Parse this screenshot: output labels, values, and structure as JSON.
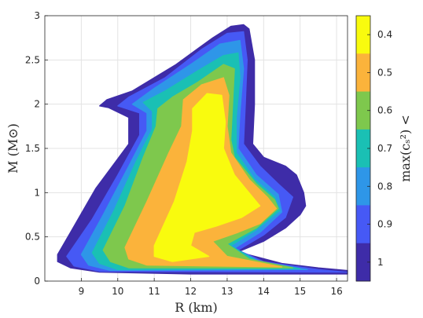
{
  "chart_data": {
    "type": "area",
    "title": "",
    "xlabel": "R (km)",
    "ylabel": "M (M⊙)",
    "xlim": [
      8.0,
      16.3
    ],
    "ylim": [
      0,
      3.0
    ],
    "xticks": [
      "9",
      "10",
      "11",
      "12",
      "13",
      "14",
      "15",
      "16"
    ],
    "xtick_values": [
      9,
      10,
      11,
      12,
      13,
      14,
      15,
      16
    ],
    "yticks": [
      "0",
      "0.5",
      "1",
      "1.5",
      "2",
      "2.5",
      "3"
    ],
    "ytick_values": [
      0,
      0.5,
      1,
      1.5,
      2,
      2.5,
      3
    ],
    "grid": true,
    "colorbar": {
      "label": "max(cₛ²) <",
      "ticks": [
        "0.4",
        "0.5",
        "0.6",
        "0.7",
        "0.8",
        "0.9",
        "1"
      ],
      "colors": [
        "#f9fb0e",
        "#fbb33b",
        "#7ec84d",
        "#1ac0b4",
        "#2e96e8",
        "#4659f5",
        "#3e2ca8"
      ]
    },
    "regions": [
      {
        "bound": "1",
        "color": "#3e2ca8",
        "points": [
          [
            8.35,
            0.3
          ],
          [
            8.7,
            0.55
          ],
          [
            9.4,
            1.05
          ],
          [
            10.3,
            1.55
          ],
          [
            10.3,
            1.85
          ],
          [
            9.75,
            1.96
          ],
          [
            9.5,
            1.98
          ],
          [
            9.7,
            2.05
          ],
          [
            10.4,
            2.15
          ],
          [
            11.6,
            2.45
          ],
          [
            12.6,
            2.75
          ],
          [
            13.1,
            2.88
          ],
          [
            13.45,
            2.9
          ],
          [
            13.6,
            2.85
          ],
          [
            13.75,
            2.5
          ],
          [
            13.75,
            2.0
          ],
          [
            13.7,
            1.55
          ],
          [
            14.0,
            1.4
          ],
          [
            14.6,
            1.3
          ],
          [
            14.9,
            1.2
          ],
          [
            15.1,
            1.0
          ],
          [
            15.15,
            0.85
          ],
          [
            15.0,
            0.75
          ],
          [
            14.6,
            0.6
          ],
          [
            14.0,
            0.45
          ],
          [
            13.3,
            0.33
          ],
          [
            14.5,
            0.2
          ],
          [
            15.5,
            0.15
          ],
          [
            16.3,
            0.12
          ],
          [
            16.3,
            0.08
          ],
          [
            12.0,
            0.08
          ],
          [
            9.5,
            0.1
          ],
          [
            8.7,
            0.15
          ],
          [
            8.35,
            0.22
          ]
        ]
      },
      {
        "bound": "0.9",
        "color": "#4659f5",
        "points": [
          [
            8.6,
            0.28
          ],
          [
            9.3,
            0.7
          ],
          [
            10.0,
            1.2
          ],
          [
            10.6,
            1.65
          ],
          [
            10.6,
            1.9
          ],
          [
            10.0,
            1.98
          ],
          [
            10.3,
            2.08
          ],
          [
            11.3,
            2.3
          ],
          [
            12.3,
            2.62
          ],
          [
            13.0,
            2.8
          ],
          [
            13.45,
            2.82
          ],
          [
            13.55,
            2.5
          ],
          [
            13.5,
            2.0
          ],
          [
            13.45,
            1.55
          ],
          [
            13.9,
            1.3
          ],
          [
            14.4,
            1.1
          ],
          [
            14.8,
            0.95
          ],
          [
            14.6,
            0.72
          ],
          [
            14.0,
            0.52
          ],
          [
            13.3,
            0.35
          ],
          [
            14.0,
            0.22
          ],
          [
            15.5,
            0.13
          ],
          [
            16.3,
            0.1
          ],
          [
            9.5,
            0.11
          ],
          [
            8.8,
            0.17
          ]
        ]
      },
      {
        "bound": "0.8",
        "color": "#2e96e8",
        "points": [
          [
            9.0,
            0.3
          ],
          [
            9.6,
            0.75
          ],
          [
            10.3,
            1.3
          ],
          [
            10.8,
            1.7
          ],
          [
            10.8,
            1.9
          ],
          [
            10.4,
            2.0
          ],
          [
            11.0,
            2.18
          ],
          [
            12.0,
            2.45
          ],
          [
            12.8,
            2.68
          ],
          [
            13.35,
            2.72
          ],
          [
            13.45,
            2.4
          ],
          [
            13.35,
            1.9
          ],
          [
            13.3,
            1.5
          ],
          [
            13.8,
            1.2
          ],
          [
            14.4,
            0.98
          ],
          [
            14.5,
            0.78
          ],
          [
            13.9,
            0.55
          ],
          [
            13.2,
            0.37
          ],
          [
            13.9,
            0.22
          ],
          [
            15.2,
            0.13
          ],
          [
            9.8,
            0.12
          ],
          [
            9.2,
            0.18
          ]
        ]
      },
      {
        "bound": "0.7",
        "color": "#1ac0b4",
        "points": [
          [
            9.3,
            0.32
          ],
          [
            9.9,
            0.8
          ],
          [
            10.5,
            1.35
          ],
          [
            10.95,
            1.72
          ],
          [
            10.95,
            1.92
          ],
          [
            10.7,
            2.02
          ],
          [
            11.3,
            2.15
          ],
          [
            12.2,
            2.38
          ],
          [
            12.9,
            2.55
          ],
          [
            13.3,
            2.58
          ],
          [
            13.35,
            2.3
          ],
          [
            13.25,
            1.85
          ],
          [
            13.25,
            1.45
          ],
          [
            13.75,
            1.15
          ],
          [
            14.3,
            0.95
          ],
          [
            14.45,
            0.8
          ],
          [
            13.8,
            0.58
          ],
          [
            13.1,
            0.4
          ],
          [
            13.8,
            0.23
          ],
          [
            15.0,
            0.14
          ],
          [
            10.0,
            0.13
          ],
          [
            9.5,
            0.2
          ]
        ]
      },
      {
        "bound": "0.6",
        "color": "#7ec84d",
        "points": [
          [
            9.6,
            0.35
          ],
          [
            10.2,
            0.85
          ],
          [
            10.7,
            1.4
          ],
          [
            11.05,
            1.75
          ],
          [
            11.1,
            1.95
          ],
          [
            11.5,
            2.08
          ],
          [
            12.2,
            2.25
          ],
          [
            12.9,
            2.45
          ],
          [
            13.2,
            2.4
          ],
          [
            13.15,
            2.0
          ],
          [
            13.1,
            1.6
          ],
          [
            13.2,
            1.4
          ],
          [
            13.8,
            1.1
          ],
          [
            14.3,
            0.92
          ],
          [
            14.4,
            0.82
          ],
          [
            13.8,
            0.6
          ],
          [
            13.0,
            0.42
          ],
          [
            13.6,
            0.25
          ],
          [
            14.8,
            0.15
          ],
          [
            10.3,
            0.15
          ],
          [
            9.8,
            0.22
          ]
        ]
      },
      {
        "bound": "0.5",
        "color": "#fbb33b",
        "points": [
          [
            10.2,
            0.38
          ],
          [
            10.8,
            0.9
          ],
          [
            11.4,
            1.45
          ],
          [
            11.75,
            1.75
          ],
          [
            11.8,
            2.05
          ],
          [
            12.3,
            2.22
          ],
          [
            12.9,
            2.3
          ],
          [
            13.05,
            2.1
          ],
          [
            13.0,
            1.75
          ],
          [
            13.1,
            1.45
          ],
          [
            13.6,
            1.15
          ],
          [
            14.1,
            0.95
          ],
          [
            14.35,
            0.82
          ],
          [
            13.9,
            0.65
          ],
          [
            13.3,
            0.55
          ],
          [
            12.6,
            0.45
          ],
          [
            13.0,
            0.28
          ],
          [
            14.5,
            0.16
          ],
          [
            10.8,
            0.18
          ],
          [
            10.3,
            0.25
          ]
        ]
      },
      {
        "bound": "0.4",
        "color": "#f9fb0e",
        "points": [
          [
            11.0,
            0.4
          ],
          [
            11.55,
            0.9
          ],
          [
            11.9,
            1.35
          ],
          [
            12.05,
            1.7
          ],
          [
            12.05,
            1.95
          ],
          [
            12.45,
            2.12
          ],
          [
            12.85,
            2.1
          ],
          [
            12.95,
            1.8
          ],
          [
            12.9,
            1.5
          ],
          [
            13.2,
            1.2
          ],
          [
            13.7,
            0.95
          ],
          [
            13.9,
            0.85
          ],
          [
            13.4,
            0.72
          ],
          [
            12.7,
            0.62
          ],
          [
            12.1,
            0.55
          ],
          [
            12.0,
            0.4
          ],
          [
            12.5,
            0.28
          ],
          [
            11.5,
            0.22
          ],
          [
            11.0,
            0.28
          ]
        ]
      }
    ]
  }
}
